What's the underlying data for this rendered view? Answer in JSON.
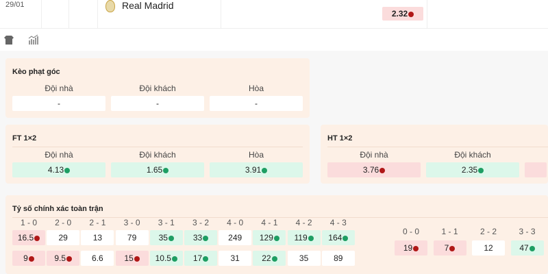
{
  "match": {
    "date": "29/01",
    "team": "Real Madrid",
    "odds": {
      "value": "2.32",
      "trend": "down"
    }
  },
  "toolbar": {
    "icons": [
      "shirt-icon",
      "stats-icon"
    ]
  },
  "colors": {
    "up": "#1e9e63",
    "down": "#b01818",
    "up_bg": "#dcf7ea",
    "down_bg": "#fbdcdc",
    "card_bg": "#fdf0e6"
  },
  "corner": {
    "title": "Kèo phạt góc",
    "labels": [
      "Đội nhà",
      "Đội khách",
      "Hòa"
    ],
    "values": [
      "-",
      "-",
      "-"
    ]
  },
  "ft": {
    "title": "FT 1×2",
    "labels": [
      "Đội nhà",
      "Đội khách",
      "Hòa"
    ],
    "values": [
      {
        "v": "4.13",
        "t": "up"
      },
      {
        "v": "1.65",
        "t": "up"
      },
      {
        "v": "3.91",
        "t": "up"
      }
    ]
  },
  "ht": {
    "title": "HT 1×2",
    "labels": [
      "Đội nhà",
      "Đội khách"
    ],
    "values": [
      {
        "v": "3.76",
        "t": "down"
      },
      {
        "v": "2.35",
        "t": "up"
      },
      {
        "v": "",
        "t": "down"
      }
    ]
  },
  "exact": {
    "title": "Tỷ số chính xác toàn trận",
    "columns": [
      {
        "score": "1 - 0",
        "a": {
          "v": "16.5",
          "t": "down"
        },
        "b": {
          "v": "9",
          "t": "down"
        }
      },
      {
        "score": "2 - 0",
        "a": {
          "v": "29",
          "t": ""
        },
        "b": {
          "v": "9.5",
          "t": "down"
        }
      },
      {
        "score": "2 - 1",
        "a": {
          "v": "13",
          "t": ""
        },
        "b": {
          "v": "6.6",
          "t": ""
        }
      },
      {
        "score": "3 - 0",
        "a": {
          "v": "79",
          "t": ""
        },
        "b": {
          "v": "15",
          "t": "down"
        }
      },
      {
        "score": "3 - 1",
        "a": {
          "v": "35",
          "t": "up"
        },
        "b": {
          "v": "10.5",
          "t": "up"
        }
      },
      {
        "score": "3 - 2",
        "a": {
          "v": "33",
          "t": "up"
        },
        "b": {
          "v": "17",
          "t": "up"
        }
      },
      {
        "score": "4 - 0",
        "a": {
          "v": "249",
          "t": ""
        },
        "b": {
          "v": "31",
          "t": ""
        }
      },
      {
        "score": "4 - 1",
        "a": {
          "v": "129",
          "t": "up"
        },
        "b": {
          "v": "22",
          "t": "up"
        }
      },
      {
        "score": "4 - 2",
        "a": {
          "v": "119",
          "t": "up"
        },
        "b": {
          "v": "35",
          "t": ""
        }
      },
      {
        "score": "4 - 3",
        "a": {
          "v": "164",
          "t": "up"
        },
        "b": {
          "v": "89",
          "t": ""
        }
      }
    ],
    "draws": [
      {
        "score": "0 - 0",
        "v": "19",
        "t": "down"
      },
      {
        "score": "1 - 1",
        "v": "7",
        "t": "down"
      },
      {
        "score": "2 - 2",
        "v": "12",
        "t": ""
      },
      {
        "score": "3 - 3",
        "v": "47",
        "t": "up"
      }
    ]
  }
}
